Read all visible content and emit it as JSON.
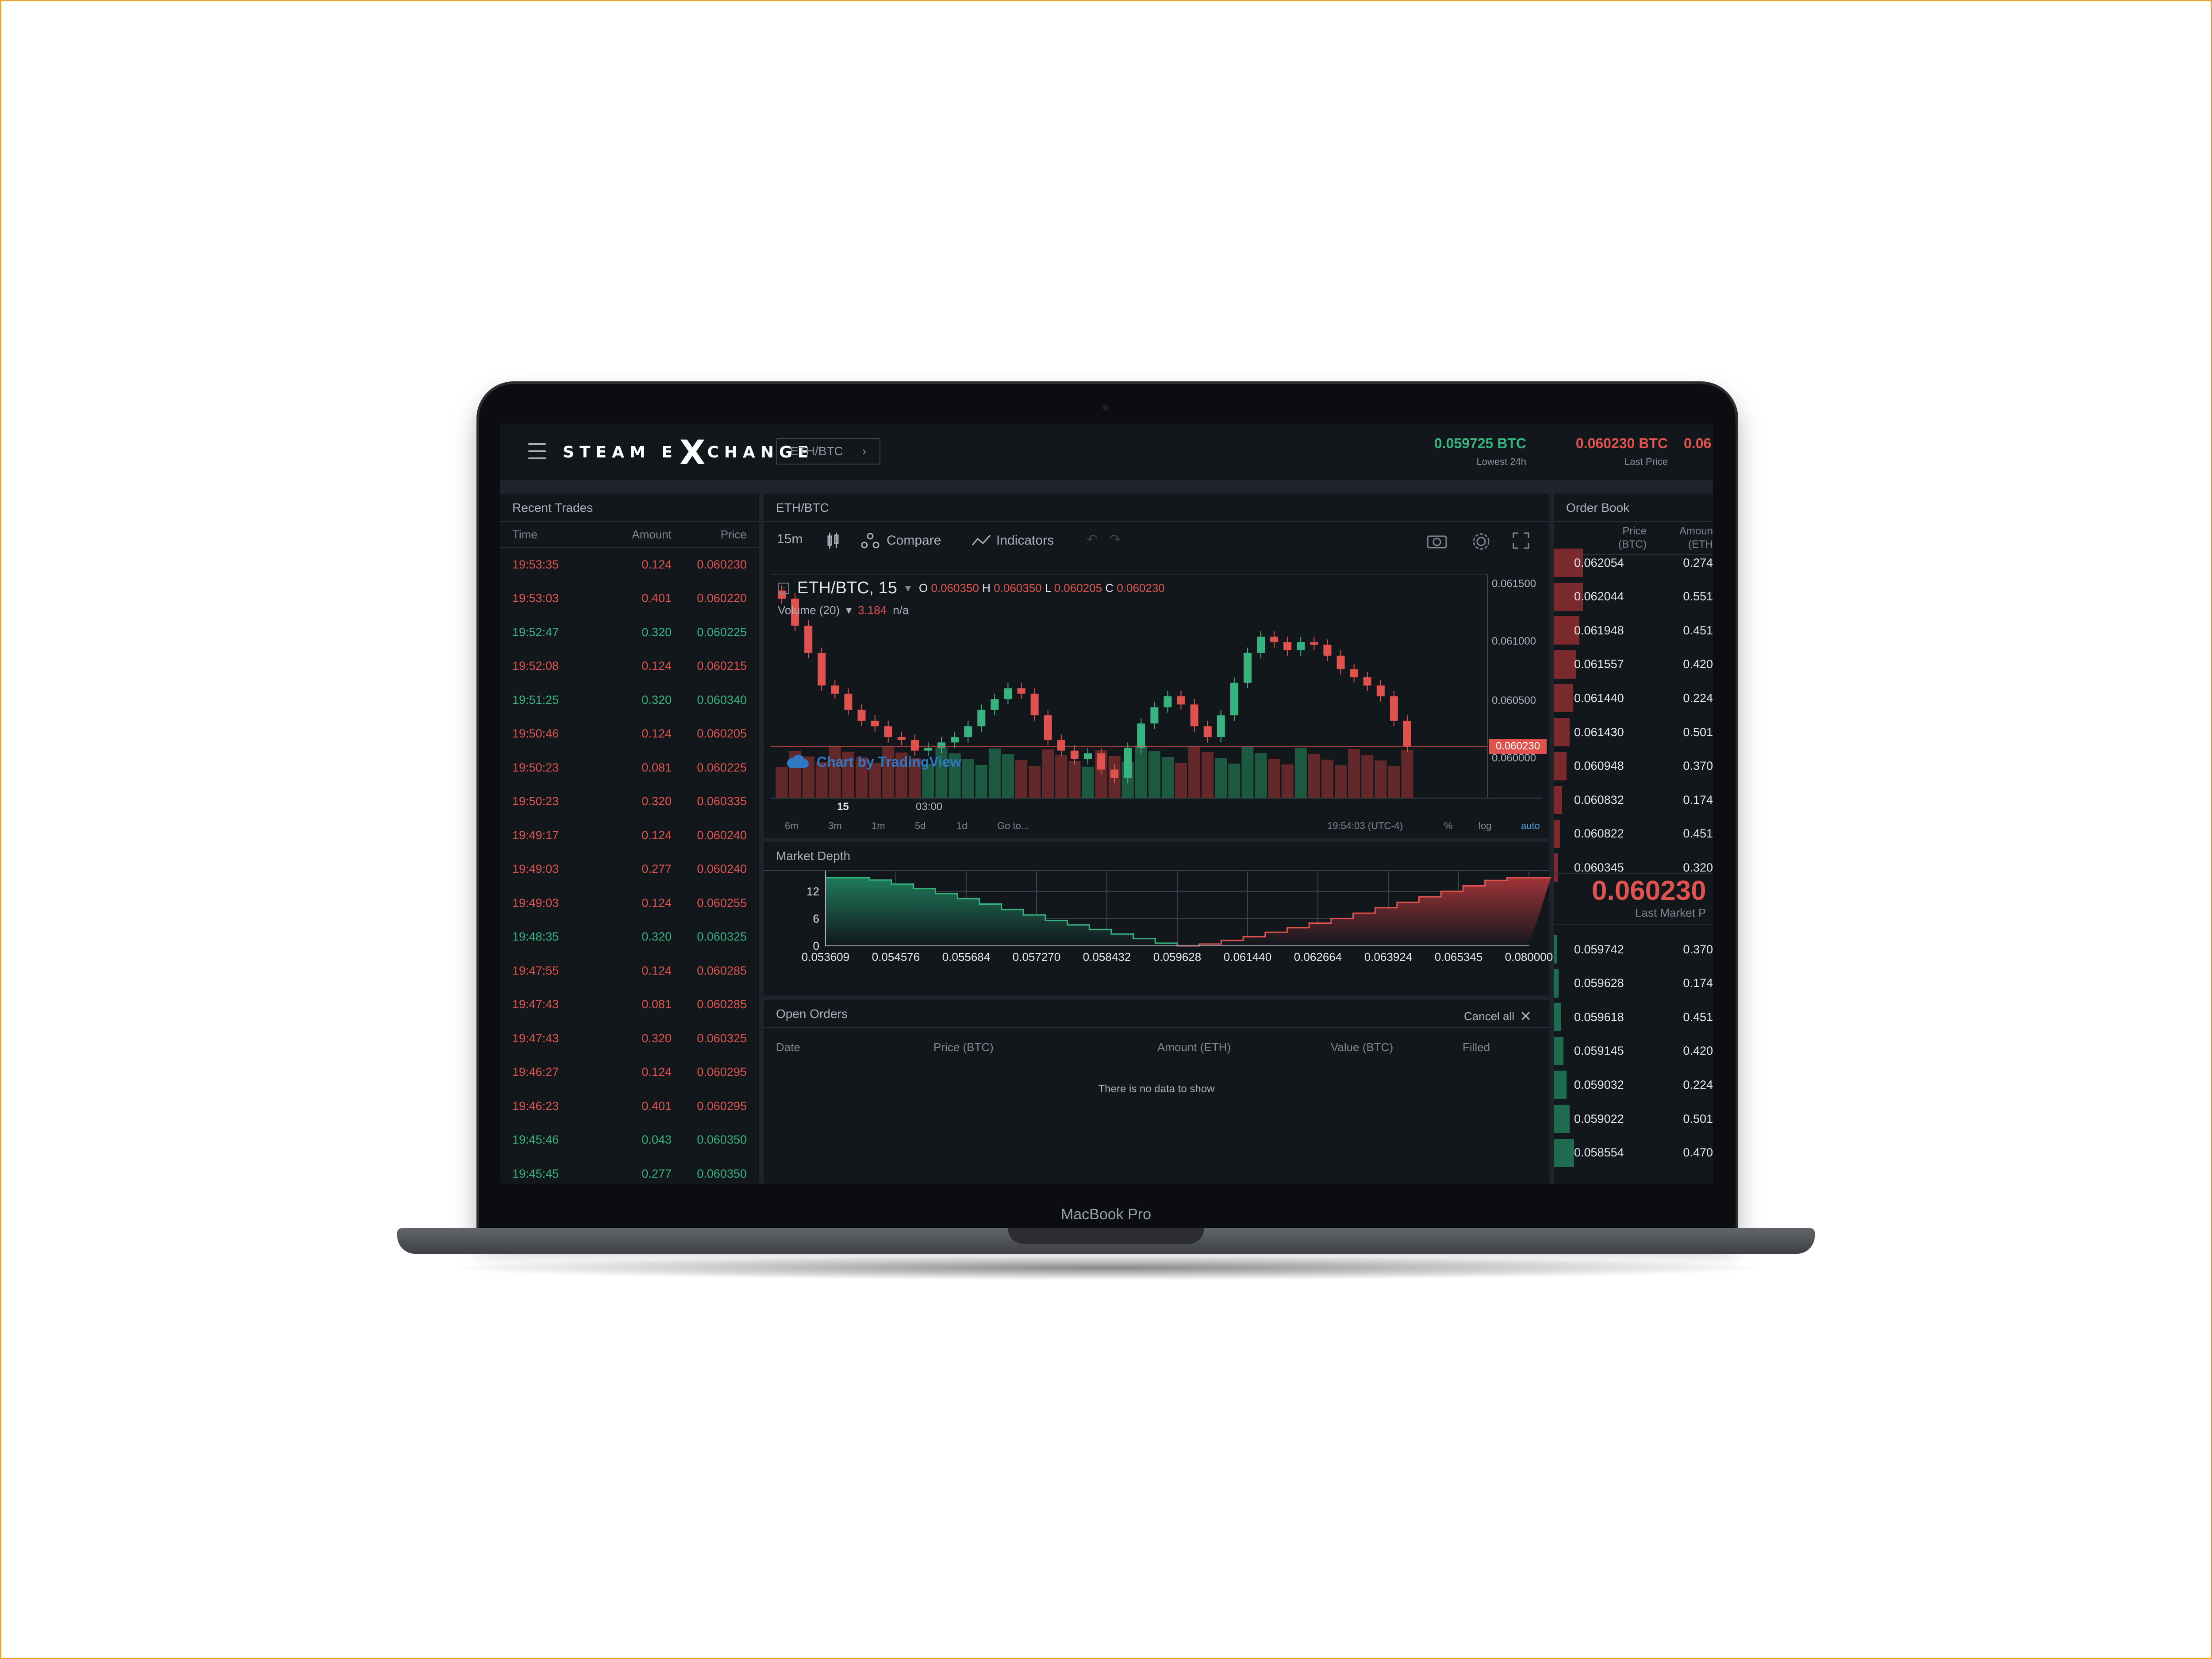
{
  "device": {
    "label": "MacBook Pro"
  },
  "header": {
    "logo_left": "STEAM E",
    "logo_x": "X",
    "logo_right": "CHANGE",
    "pair_button": "ETH/BTC",
    "stats": [
      {
        "value": "0.059725 BTC",
        "label": "Lowest 24h",
        "color": "#36b37e"
      },
      {
        "value": "0.060230 BTC",
        "label": "Last Price",
        "color": "#e0524e"
      },
      {
        "value": "0.06",
        "label": "",
        "color": "#e0524e"
      }
    ]
  },
  "recent_trades": {
    "title": "Recent Trades",
    "columns": [
      "Time",
      "Amount",
      "Price"
    ],
    "rows": [
      {
        "time": "19:53:35",
        "amount": "0.124",
        "price": "0.060230",
        "side": "sell"
      },
      {
        "time": "19:53:03",
        "amount": "0.401",
        "price": "0.060220",
        "side": "sell"
      },
      {
        "time": "19:52:47",
        "amount": "0.320",
        "price": "0.060225",
        "side": "buy"
      },
      {
        "time": "19:52:08",
        "amount": "0.124",
        "price": "0.060215",
        "side": "sell"
      },
      {
        "time": "19:51:25",
        "amount": "0.320",
        "price": "0.060340",
        "side": "buy"
      },
      {
        "time": "19:50:46",
        "amount": "0.124",
        "price": "0.060205",
        "side": "sell"
      },
      {
        "time": "19:50:23",
        "amount": "0.081",
        "price": "0.060225",
        "side": "sell"
      },
      {
        "time": "19:50:23",
        "amount": "0.320",
        "price": "0.060335",
        "side": "sell"
      },
      {
        "time": "19:49:17",
        "amount": "0.124",
        "price": "0.060240",
        "side": "sell"
      },
      {
        "time": "19:49:03",
        "amount": "0.277",
        "price": "0.060240",
        "side": "sell"
      },
      {
        "time": "19:49:03",
        "amount": "0.124",
        "price": "0.060255",
        "side": "sell"
      },
      {
        "time": "19:48:35",
        "amount": "0.320",
        "price": "0.060325",
        "side": "buy"
      },
      {
        "time": "19:47:55",
        "amount": "0.124",
        "price": "0.060285",
        "side": "sell"
      },
      {
        "time": "19:47:43",
        "amount": "0.081",
        "price": "0.060285",
        "side": "sell"
      },
      {
        "time": "19:47:43",
        "amount": "0.320",
        "price": "0.060325",
        "side": "sell"
      },
      {
        "time": "19:46:27",
        "amount": "0.124",
        "price": "0.060295",
        "side": "sell"
      },
      {
        "time": "19:46:23",
        "amount": "0.401",
        "price": "0.060295",
        "side": "sell"
      },
      {
        "time": "19:45:46",
        "amount": "0.043",
        "price": "0.060350",
        "side": "buy"
      },
      {
        "time": "19:45:45",
        "amount": "0.277",
        "price": "0.060350",
        "side": "buy"
      }
    ]
  },
  "chart_panel": {
    "title": "ETH/BTC",
    "interval": "15m",
    "compare": "Compare",
    "indicators": "Indicators",
    "legend_symbol": "ETH/BTC, 15",
    "ohlc": {
      "o_label": "O",
      "o": "0.060350",
      "h_label": "H",
      "h": "0.060350",
      "l_label": "L",
      "l": "0.060205",
      "c_label": "C",
      "c": "0.060230"
    },
    "volume_label": "Volume (20)",
    "volume_value": "3.184",
    "volume_na": "n/a",
    "price_axis": [
      "0.061500",
      "0.061000",
      "0.060500",
      "0.060000"
    ],
    "last_price_tag": "0.060230",
    "time_axis": [
      "15",
      "03:00"
    ],
    "watermark": "Chart by TradingView",
    "ranges": [
      "6m",
      "3m",
      "1m",
      "5d",
      "1d",
      "Go to..."
    ],
    "clock": "19:54:03 (UTC-4)",
    "opts": [
      "%",
      "log",
      "auto"
    ]
  },
  "chart_data": [
    {
      "type": "line",
      "title": "",
      "series": [
        {
          "values": [
            0.06132,
            0.06112,
            0.06092,
            0.06068,
            0.06062,
            0.0605,
            0.06042,
            0.06038,
            0.0603,
            0.06028,
            0.0602,
            0.06022,
            0.06026,
            0.0603,
            0.06038,
            0.0605,
            0.06058,
            0.06066,
            0.06062,
            0.06046,
            0.06028,
            0.0602,
            0.06014,
            0.06018,
            0.06006,
            0.06,
            0.06022,
            0.0604,
            0.06052,
            0.0606,
            0.06054,
            0.06038,
            0.0603,
            0.06046,
            0.0607,
            0.06092,
            0.06104,
            0.061,
            0.06094,
            0.061,
            0.06098,
            0.0609,
            0.0608,
            0.06074,
            0.06068,
            0.0606,
            0.06042,
            0.06023
          ]
        }
      ],
      "ylim": [
        0.05985,
        0.0615
      ]
    },
    {
      "type": "area",
      "title": "Market Depth",
      "x_ticks": [
        "0.053609",
        "0.054576",
        "0.055684",
        "0.057270",
        "0.058432",
        "0.059628",
        "0.061440",
        "0.062664",
        "0.063924",
        "0.065345",
        "0.080000"
      ],
      "y_ticks": [
        "12",
        "6",
        "0"
      ],
      "ylim": [
        0,
        15
      ],
      "series": [
        {
          "name": "bids",
          "color": "#1f7a5a",
          "values": [
            15,
            15,
            14.5,
            13.6,
            12.6,
            11.5,
            10.4,
            9.2,
            8.0,
            6.8,
            5.6,
            4.6,
            3.6,
            2.6,
            1.6,
            0.6,
            0
          ]
        },
        {
          "name": "asks",
          "color": "#8a2f33",
          "values": [
            0,
            0.4,
            1.2,
            2.0,
            3.0,
            4.0,
            5.0,
            6.0,
            7.2,
            8.4,
            9.6,
            10.8,
            12.0,
            13.2,
            14.4,
            15,
            15
          ]
        }
      ]
    }
  ],
  "market_depth": {
    "title": "Market Depth"
  },
  "open_orders": {
    "title": "Open Orders",
    "cancel_all": "Cancel all",
    "columns": [
      "Date",
      "Price (BTC)",
      "Amount (ETH)",
      "Value (BTC)",
      "Filled"
    ],
    "empty": "There is no data to show"
  },
  "order_book": {
    "title": "Order Book",
    "col_price": "Price",
    "col_price_unit": "(BTC)",
    "col_amount": "Amoun",
    "col_amount_unit": "(ETH",
    "asks": [
      {
        "price": "0.062054",
        "amount": "0.274",
        "depth": 0.55
      },
      {
        "price": "0.062044",
        "amount": "0.551",
        "depth": 0.55
      },
      {
        "price": "0.061948",
        "amount": "0.451",
        "depth": 0.48
      },
      {
        "price": "0.061557",
        "amount": "0.420",
        "depth": 0.42
      },
      {
        "price": "0.061440",
        "amount": "0.224",
        "depth": 0.36
      },
      {
        "price": "0.061430",
        "amount": "0.501",
        "depth": 0.3
      },
      {
        "price": "0.060948",
        "amount": "0.370",
        "depth": 0.24
      },
      {
        "price": "0.060832",
        "amount": "0.174",
        "depth": 0.16
      },
      {
        "price": "0.060822",
        "amount": "0.451",
        "depth": 0.12
      },
      {
        "price": "0.060345",
        "amount": "0.320",
        "depth": 0.08
      }
    ],
    "last_price": "0.060230",
    "last_label": "Last Market P",
    "bids": [
      {
        "price": "0.059742",
        "amount": "0.370",
        "depth": 0.06
      },
      {
        "price": "0.059628",
        "amount": "0.174",
        "depth": 0.09
      },
      {
        "price": "0.059618",
        "amount": "0.451",
        "depth": 0.13
      },
      {
        "price": "0.059145",
        "amount": "0.420",
        "depth": 0.18
      },
      {
        "price": "0.059032",
        "amount": "0.224",
        "depth": 0.24
      },
      {
        "price": "0.059022",
        "amount": "0.501",
        "depth": 0.3
      },
      {
        "price": "0.058554",
        "amount": "0.470",
        "depth": 0.38
      }
    ]
  }
}
